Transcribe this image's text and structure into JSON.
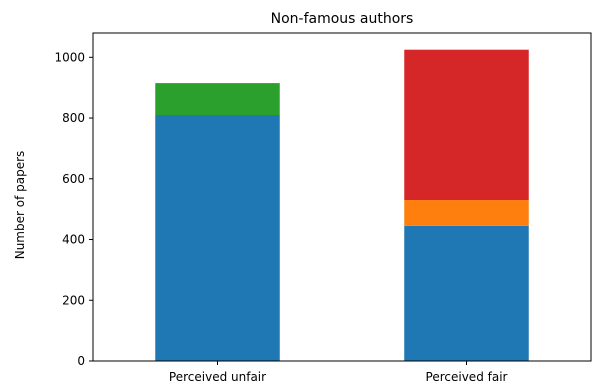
{
  "chart_data": {
    "type": "bar",
    "stacked": true,
    "title": "Non-famous authors",
    "xlabel": "",
    "ylabel": "Number of papers",
    "categories": [
      "Perceived unfair",
      "Perceived fair"
    ],
    "ylim": [
      0,
      1080
    ],
    "yticks": [
      0,
      200,
      400,
      600,
      800,
      1000
    ],
    "grid": false,
    "series": [
      {
        "color": "#1f77b4",
        "values": [
          810,
          445
        ]
      },
      {
        "color": "#ff7f0e",
        "values": [
          0,
          85
        ]
      },
      {
        "color": "#2ca02c",
        "values": [
          105,
          0
        ]
      },
      {
        "color": "#d62728",
        "values": [
          0,
          495
        ]
      }
    ]
  }
}
